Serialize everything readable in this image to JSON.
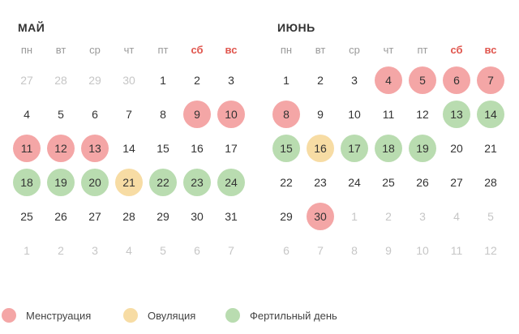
{
  "weekdays": [
    {
      "label": "пн",
      "weekend": false
    },
    {
      "label": "вт",
      "weekend": false
    },
    {
      "label": "ср",
      "weekend": false
    },
    {
      "label": "чт",
      "weekend": false
    },
    {
      "label": "пт",
      "weekend": false
    },
    {
      "label": "сб",
      "weekend": true
    },
    {
      "label": "вс",
      "weekend": true
    }
  ],
  "colors": {
    "period": "#f4a6a6",
    "ovulation": "#f7dca4",
    "fertile": "#b9dcb0",
    "weekend_text": "#e0554d"
  },
  "months": [
    {
      "title": "МАЙ",
      "days": [
        {
          "n": "27",
          "t": "out"
        },
        {
          "n": "28",
          "t": "out"
        },
        {
          "n": "29",
          "t": "out"
        },
        {
          "n": "30",
          "t": "out"
        },
        {
          "n": "1",
          "t": ""
        },
        {
          "n": "2",
          "t": ""
        },
        {
          "n": "3",
          "t": ""
        },
        {
          "n": "4",
          "t": ""
        },
        {
          "n": "5",
          "t": ""
        },
        {
          "n": "6",
          "t": ""
        },
        {
          "n": "7",
          "t": ""
        },
        {
          "n": "8",
          "t": ""
        },
        {
          "n": "9",
          "t": "period"
        },
        {
          "n": "10",
          "t": "period"
        },
        {
          "n": "11",
          "t": "period"
        },
        {
          "n": "12",
          "t": "period"
        },
        {
          "n": "13",
          "t": "period"
        },
        {
          "n": "14",
          "t": ""
        },
        {
          "n": "15",
          "t": ""
        },
        {
          "n": "16",
          "t": ""
        },
        {
          "n": "17",
          "t": ""
        },
        {
          "n": "18",
          "t": "fertile"
        },
        {
          "n": "19",
          "t": "fertile"
        },
        {
          "n": "20",
          "t": "fertile"
        },
        {
          "n": "21",
          "t": "ovulation"
        },
        {
          "n": "22",
          "t": "fertile"
        },
        {
          "n": "23",
          "t": "fertile"
        },
        {
          "n": "24",
          "t": "fertile"
        },
        {
          "n": "25",
          "t": ""
        },
        {
          "n": "26",
          "t": ""
        },
        {
          "n": "27",
          "t": ""
        },
        {
          "n": "28",
          "t": ""
        },
        {
          "n": "29",
          "t": ""
        },
        {
          "n": "30",
          "t": ""
        },
        {
          "n": "31",
          "t": ""
        },
        {
          "n": "1",
          "t": "out"
        },
        {
          "n": "2",
          "t": "out"
        },
        {
          "n": "3",
          "t": "out"
        },
        {
          "n": "4",
          "t": "out"
        },
        {
          "n": "5",
          "t": "out"
        },
        {
          "n": "6",
          "t": "out"
        },
        {
          "n": "7",
          "t": "out"
        }
      ]
    },
    {
      "title": "ИЮНЬ",
      "days": [
        {
          "n": "1",
          "t": ""
        },
        {
          "n": "2",
          "t": ""
        },
        {
          "n": "3",
          "t": ""
        },
        {
          "n": "4",
          "t": "period"
        },
        {
          "n": "5",
          "t": "period"
        },
        {
          "n": "6",
          "t": "period"
        },
        {
          "n": "7",
          "t": "period"
        },
        {
          "n": "8",
          "t": "period"
        },
        {
          "n": "9",
          "t": ""
        },
        {
          "n": "10",
          "t": ""
        },
        {
          "n": "11",
          "t": ""
        },
        {
          "n": "12",
          "t": ""
        },
        {
          "n": "13",
          "t": "fertile"
        },
        {
          "n": "14",
          "t": "fertile"
        },
        {
          "n": "15",
          "t": "fertile"
        },
        {
          "n": "16",
          "t": "ovulation"
        },
        {
          "n": "17",
          "t": "fertile"
        },
        {
          "n": "18",
          "t": "fertile"
        },
        {
          "n": "19",
          "t": "fertile"
        },
        {
          "n": "20",
          "t": ""
        },
        {
          "n": "21",
          "t": ""
        },
        {
          "n": "22",
          "t": ""
        },
        {
          "n": "23",
          "t": ""
        },
        {
          "n": "24",
          "t": ""
        },
        {
          "n": "25",
          "t": ""
        },
        {
          "n": "26",
          "t": ""
        },
        {
          "n": "27",
          "t": ""
        },
        {
          "n": "28",
          "t": ""
        },
        {
          "n": "29",
          "t": ""
        },
        {
          "n": "30",
          "t": "period"
        },
        {
          "n": "1",
          "t": "out"
        },
        {
          "n": "2",
          "t": "out"
        },
        {
          "n": "3",
          "t": "out"
        },
        {
          "n": "4",
          "t": "out"
        },
        {
          "n": "5",
          "t": "out"
        },
        {
          "n": "6",
          "t": "out"
        },
        {
          "n": "7",
          "t": "out"
        },
        {
          "n": "8",
          "t": "out"
        },
        {
          "n": "9",
          "t": "out"
        },
        {
          "n": "10",
          "t": "out"
        },
        {
          "n": "11",
          "t": "out"
        },
        {
          "n": "12",
          "t": "out"
        }
      ]
    }
  ],
  "legend": [
    {
      "key": "period",
      "label": "Менструация"
    },
    {
      "key": "ovulation",
      "label": "Овуляция"
    },
    {
      "key": "fertile",
      "label": "Фертильный день"
    }
  ]
}
